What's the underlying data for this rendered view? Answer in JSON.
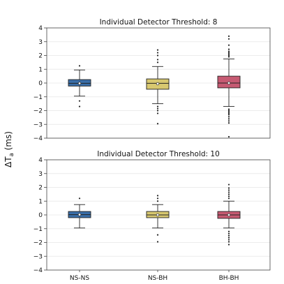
{
  "chart_data": {
    "type": "box",
    "ylabel": "ΔT_a (ms)",
    "ylabel_main": "ΔT",
    "ylabel_sub": "a",
    "ylabel_unit": " (ms)",
    "categories": [
      "NS-NS",
      "NS-BH",
      "BH-BH"
    ],
    "colors": [
      "#3a6ea8",
      "#d8c870",
      "#c65a72"
    ],
    "ylim": [
      -4,
      4
    ],
    "yticks": [
      -4,
      -3,
      -2,
      -1,
      0,
      1,
      2,
      3,
      4
    ],
    "ytick_labels": [
      "−4",
      "−3",
      "−2",
      "−1",
      "0",
      "1",
      "2",
      "3",
      "4"
    ],
    "grid": "horizontal",
    "panels": [
      {
        "title": "Individual Detector Threshold: 8",
        "boxes": [
          {
            "category": "NS-NS",
            "q1": -0.22,
            "median": -0.02,
            "q3": 0.25,
            "mean": -0.02,
            "whisker_low": -0.95,
            "whisker_high": 0.95,
            "outliers": [
              1.25,
              -1.3,
              -1.7
            ]
          },
          {
            "category": "NS-BH",
            "q1": -0.45,
            "median": -0.02,
            "q3": 0.3,
            "mean": -0.05,
            "whisker_low": -1.5,
            "whisker_high": 1.2,
            "outliers": [
              1.5,
              1.7,
              2.0,
              2.2,
              2.4,
              -1.7,
              -1.85,
              -2.0,
              -2.2,
              -2.95
            ]
          },
          {
            "category": "BH-BH",
            "q1": -0.35,
            "median": 0.0,
            "q3": 0.5,
            "mean": 0.0,
            "whisker_low": -1.7,
            "whisker_high": 1.75,
            "outliers": [
              1.9,
              2.0,
              2.1,
              2.2,
              2.3,
              2.45,
              2.75,
              3.2,
              3.4,
              -1.9,
              -2.0,
              -2.1,
              -2.2,
              -2.3,
              -2.45,
              -2.6,
              -2.75,
              -2.9,
              -3.9
            ]
          }
        ]
      },
      {
        "title": "Individual Detector Threshold: 10",
        "boxes": [
          {
            "category": "NS-NS",
            "q1": -0.2,
            "median": 0.02,
            "q3": 0.25,
            "mean": 0.02,
            "whisker_low": -0.95,
            "whisker_high": 0.75,
            "outliers": [
              1.2
            ]
          },
          {
            "category": "NS-BH",
            "q1": -0.2,
            "median": 0.0,
            "q3": 0.25,
            "mean": 0.0,
            "whisker_low": -0.95,
            "whisker_high": 0.75,
            "outliers": [
              1.0,
              1.2,
              1.4,
              -1.45,
              -1.95
            ]
          },
          {
            "category": "BH-BH",
            "q1": -0.25,
            "median": 0.0,
            "q3": 0.25,
            "mean": 0.0,
            "whisker_low": -0.95,
            "whisker_high": 1.0,
            "outliers": [
              1.2,
              1.35,
              1.5,
              1.65,
              1.8,
              1.95,
              2.2,
              -1.2,
              -1.35,
              -1.5,
              -1.65,
              -1.8,
              -1.95,
              -2.15
            ]
          }
        ]
      }
    ]
  }
}
